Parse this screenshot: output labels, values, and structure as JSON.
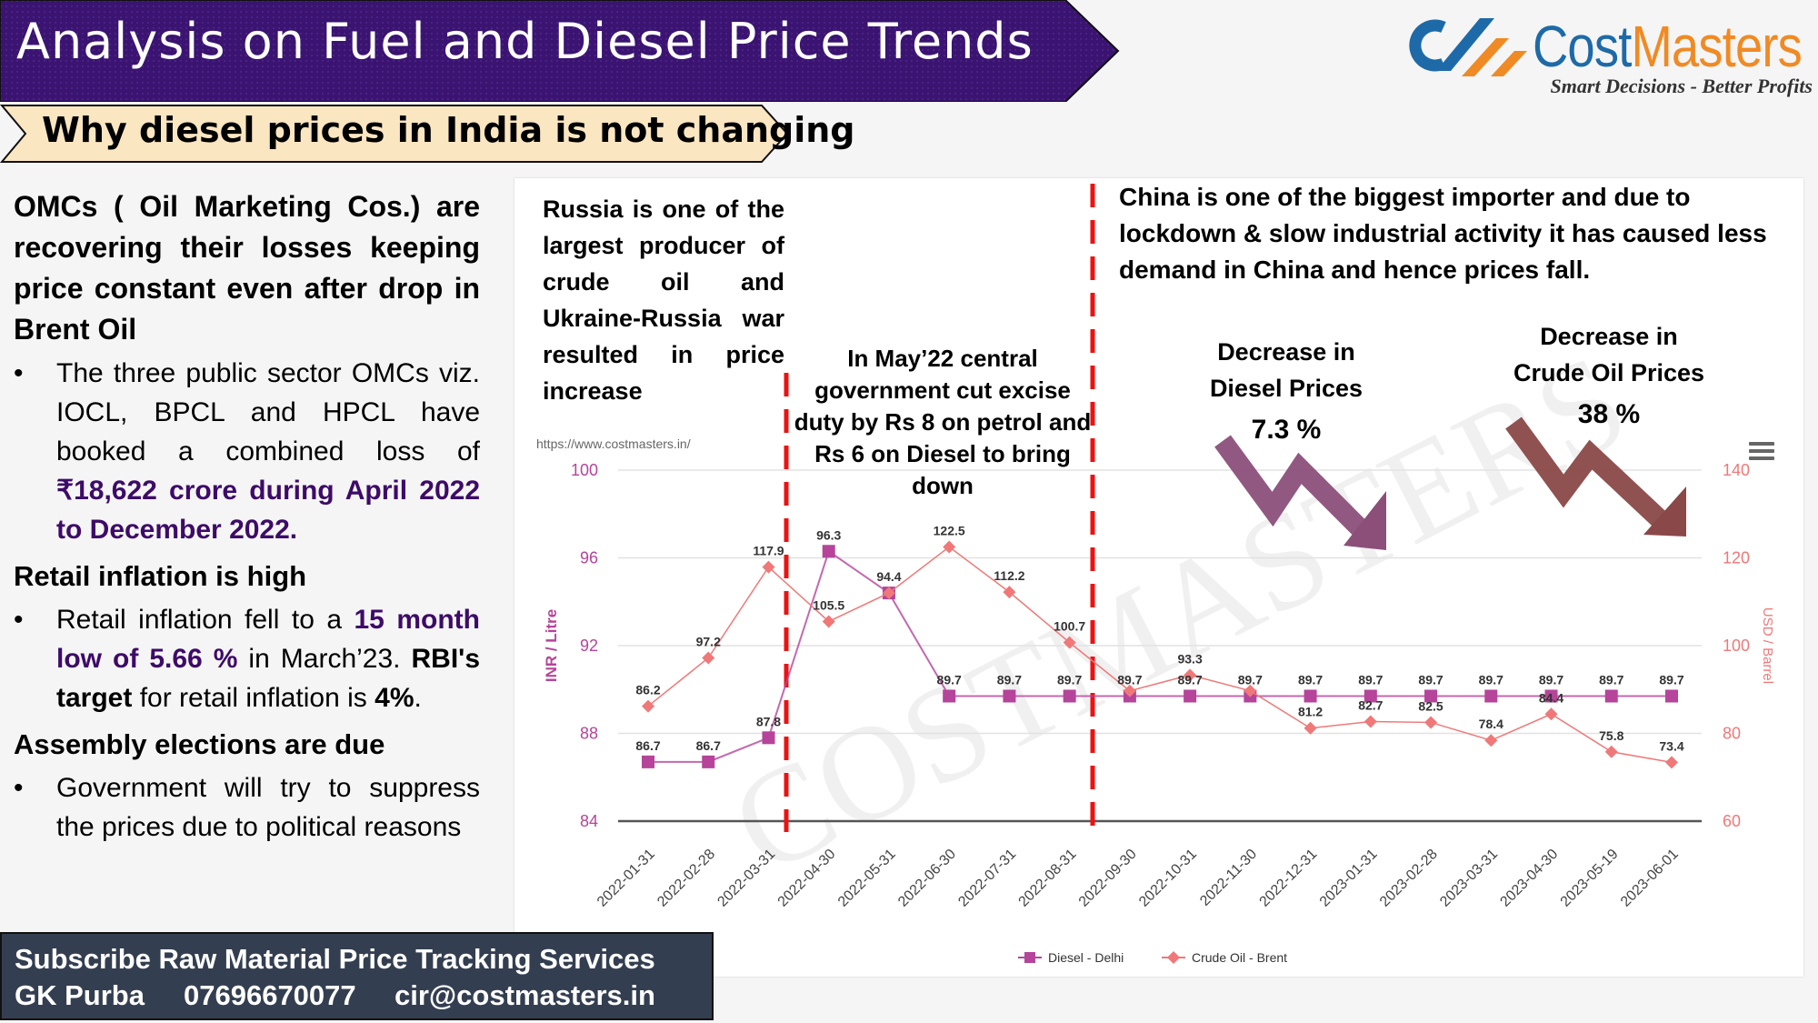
{
  "header": {
    "title": "Analysis on Fuel and Diesel Price Trends",
    "subtitle": "Why diesel prices in India is not changing",
    "colors": {
      "banner": "#3a1470",
      "subtitle_banner": "#fbe6c2"
    }
  },
  "logo": {
    "name_part1": "Cost",
    "name_part2": "Masters",
    "tagline": "Smart Decisions - Better Profits",
    "colors": {
      "blue": "#1e6aa8",
      "orange": "#f08a24"
    }
  },
  "left_panel": {
    "heading1": "OMCs ( Oil Marketing Cos.) are recovering their losses keeping price constant even after drop in Brent Oil",
    "bullet1_text": "The three public sector OMCs viz. IOCL, BPCL and HPCL have booked a combined loss of ",
    "bullet1_highlight": "₹18,622 crore during April 2022 to December 2022.",
    "heading2": "Retail inflation is high",
    "bullet2_text_a": "Retail inflation fell to a ",
    "bullet2_highlight": "15 month low of 5.66 %",
    "bullet2_text_b": " in March’23. ",
    "bullet2_bold": "RBI's target",
    "bullet2_text_c": " for retail inflation is ",
    "bullet2_bold2": "4%",
    "bullet2_text_d": ".",
    "heading3": "Assembly elections are due",
    "bullet3_text": "Government will try to suppress the prices due to political reasons",
    "bullet_symbol": "•"
  },
  "footer": {
    "line1": "Subscribe Raw Material Price Tracking Services",
    "name": "GK Purba",
    "phone": "07696670077",
    "email": "cir@costmasters.in"
  },
  "annotations": {
    "russia": "Russia is one of the largest producer of crude oil and Ukraine-Russia war resulted in price increase",
    "may22": "In May’22 central government cut excise duty by Rs 8 on petrol and Rs 6 on Diesel to bring down",
    "china": "China is one of the biggest importer and due to lockdown & slow industrial activity it has caused less demand in China and hence prices fall.",
    "diesel_decrease_line1": "Decrease in",
    "diesel_decrease_line2": "Diesel  Prices",
    "diesel_decrease_pct": "7.3 %",
    "crude_decrease_line1": "Decrease in",
    "crude_decrease_line2": "Crude Oil Prices",
    "crude_decrease_pct": "38 %",
    "arrow_colors": {
      "diesel": "#8b4f7a",
      "crude": "#8a4848"
    },
    "divider_color": "#ee1111"
  },
  "chart_source_url": "https://www.costmasters.in/",
  "watermark": "COSTMASTERS",
  "chart_data": {
    "type": "line",
    "categories": [
      "2022-01-31",
      "2022-02-28",
      "2022-03-31",
      "2022-04-30",
      "2022-05-31",
      "2022-06-30",
      "2022-07-31",
      "2022-08-31",
      "2022-09-30",
      "2022-10-31",
      "2022-11-30",
      "2022-12-31",
      "2023-01-31",
      "2023-02-28",
      "2023-03-31",
      "2023-04-30",
      "2023-05-19",
      "2023-06-01"
    ],
    "series": [
      {
        "name": "Diesel - Delhi",
        "axis": "left",
        "color": "#b5449a",
        "marker": "square",
        "values": [
          86.7,
          86.7,
          87.8,
          96.3,
          94.4,
          89.7,
          89.7,
          89.7,
          89.7,
          89.7,
          89.7,
          89.7,
          89.7,
          89.7,
          89.7,
          89.7,
          89.7,
          89.7
        ],
        "labels": [
          "86.7",
          "86.7",
          "87.8",
          "96.3",
          "94.4",
          "89.7",
          "89.7",
          "89.7",
          "89.7",
          "89.7",
          "89.7",
          "89.7",
          "89.7",
          "89.7",
          "89.7",
          "89.7",
          "89.7",
          "89.7"
        ]
      },
      {
        "name": "Crude Oil - Brent",
        "axis": "right",
        "color": "#f07878",
        "marker": "diamond",
        "values": [
          86.2,
          97.2,
          117.9,
          105.5,
          112,
          122.5,
          112.2,
          100.7,
          89.7,
          93.3,
          89.7,
          81.2,
          82.7,
          82.5,
          78.4,
          84.4,
          75.8,
          73.4
        ],
        "labels": [
          "86.2",
          "97.2",
          "117.9",
          "105.5",
          "",
          "122.5",
          "112.2",
          "100.7",
          "",
          "93.3",
          "",
          "81.2",
          "82.7",
          "82.5",
          "78.4",
          "84.4",
          "75.8",
          "73.4"
        ]
      }
    ],
    "ylabel": "INR / Litre",
    "ylabel_right": "USD / Barrel",
    "ylim": [
      84,
      100
    ],
    "ylim_right": [
      60,
      140
    ],
    "yticks": [
      "84",
      "88",
      "92",
      "96",
      "100"
    ],
    "yticks_right": [
      "60",
      "80",
      "100",
      "120",
      "140"
    ],
    "grid": true,
    "legend": "bottom"
  }
}
